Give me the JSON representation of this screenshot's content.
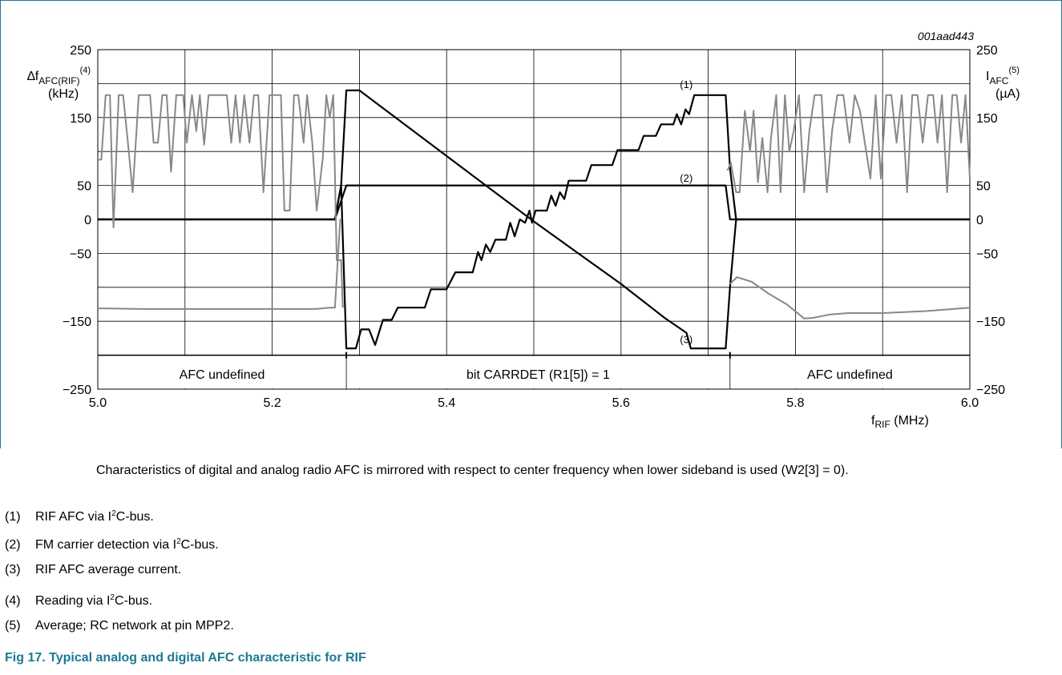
{
  "figure_id": "001aad443",
  "figure_caption": "Fig 17. Typical analog and digital AFC characteristic for RIF",
  "caption_text": "Characteristics of digital and analog radio AFC is mirrored with respect to center frequency when lower sideband is used (W2[3] = 0).",
  "notes": [
    {
      "num": "(1)",
      "pre": "RIF AFC via I",
      "post": "C-bus."
    },
    {
      "num": "(2)",
      "pre": "FM carrier detection via I",
      "post": "C-bus."
    },
    {
      "num": "(3)",
      "pre": "RIF AFC average current.",
      "post": ""
    },
    {
      "num": "(4)",
      "pre": "Reading via I",
      "post": "C-bus."
    },
    {
      "num": "(5)",
      "pre": "Average; RC network at pin MPP2.",
      "post": ""
    }
  ],
  "sup2": "2",
  "colors": {
    "frame": "#1b7a93",
    "black": "#000000",
    "gray": "#888888",
    "grid": "#000000",
    "caption": "#1b7a93"
  },
  "chart_data": {
    "type": "line",
    "xlabel_main": "f",
    "xlabel_sub": "RIF",
    "xlabel_unit": " (MHz)",
    "ylabel_left_main": "∆f",
    "ylabel_left_sub": "AFC(RIF)",
    "ylabel_left_sup": "(4)",
    "ylabel_left_unit": "(kHz)",
    "ylabel_right_main": "I",
    "ylabel_right_sub": "AFC",
    "ylabel_right_sup": "(5)",
    "ylabel_right_unit": "(µA)",
    "xlim": [
      5.0,
      6.0
    ],
    "ylim": [
      -250,
      250
    ],
    "x_ticks": [
      "5.0",
      "5.2",
      "5.4",
      "5.6",
      "5.8",
      "6.0"
    ],
    "y_ticks_left": [
      "250",
      "150",
      "50",
      "0",
      "−50",
      "−150",
      "−250"
    ],
    "y_ticks_right": [
      "250",
      "150",
      "50",
      "0",
      "−50",
      "−150",
      "−250"
    ],
    "grid": true,
    "regions": [
      {
        "label": "AFC undefined",
        "x_from": 5.0,
        "x_to": 5.285
      },
      {
        "label": "bit CARRDET (R1[5]) = 1",
        "x_from": 5.285,
        "x_to": 5.725
      },
      {
        "label": "AFC undefined",
        "x_from": 5.725,
        "x_to": 6.0
      }
    ],
    "series": [
      {
        "name": "(1)",
        "label_at": [
          5.695,
          203
        ],
        "points": [
          [
            5.0,
            0
          ],
          [
            5.272,
            0
          ],
          [
            5.279,
            50
          ],
          [
            5.285,
            -190
          ],
          [
            5.296,
            -190
          ],
          [
            5.302,
            -162
          ],
          [
            5.311,
            -162
          ],
          [
            5.318,
            -185
          ],
          [
            5.327,
            -148
          ],
          [
            5.337,
            -148
          ],
          [
            5.344,
            -130
          ],
          [
            5.375,
            -130
          ],
          [
            5.382,
            -103
          ],
          [
            5.4,
            -103
          ],
          [
            5.41,
            -78
          ],
          [
            5.43,
            -78
          ],
          [
            5.436,
            -48
          ],
          [
            5.44,
            -60
          ],
          [
            5.445,
            -37
          ],
          [
            5.45,
            -48
          ],
          [
            5.456,
            -30
          ],
          [
            5.468,
            -30
          ],
          [
            5.473,
            -5
          ],
          [
            5.478,
            -25
          ],
          [
            5.484,
            0
          ],
          [
            5.49,
            -5
          ],
          [
            5.495,
            13
          ],
          [
            5.498,
            -5
          ],
          [
            5.502,
            13
          ],
          [
            5.515,
            13
          ],
          [
            5.52,
            35
          ],
          [
            5.525,
            20
          ],
          [
            5.53,
            40
          ],
          [
            5.535,
            30
          ],
          [
            5.54,
            57
          ],
          [
            5.56,
            57
          ],
          [
            5.566,
            80
          ],
          [
            5.59,
            80
          ],
          [
            5.596,
            102
          ],
          [
            5.62,
            102
          ],
          [
            5.626,
            123
          ],
          [
            5.64,
            123
          ],
          [
            5.646,
            140
          ],
          [
            5.66,
            140
          ],
          [
            5.664,
            155
          ],
          [
            5.669,
            140
          ],
          [
            5.674,
            162
          ],
          [
            5.678,
            155
          ],
          [
            5.684,
            183
          ],
          [
            5.72,
            183
          ],
          [
            5.725,
            75
          ],
          [
            5.732,
            0
          ],
          [
            6.0,
            0
          ]
        ]
      },
      {
        "name": "(2)",
        "label_at": [
          5.695,
          65
        ],
        "points": [
          [
            5.0,
            0
          ],
          [
            5.272,
            0
          ],
          [
            5.285,
            50
          ],
          [
            5.72,
            50
          ],
          [
            5.725,
            0
          ],
          [
            6.0,
            0
          ]
        ]
      },
      {
        "name": "(3)",
        "label_at": [
          5.695,
          -173
        ],
        "points": [
          [
            5.0,
            0
          ],
          [
            5.272,
            0
          ],
          [
            5.279,
            50
          ],
          [
            5.285,
            190
          ],
          [
            5.3,
            190
          ],
          [
            5.45,
            45
          ],
          [
            5.5,
            -3
          ],
          [
            5.55,
            -49
          ],
          [
            5.6,
            -95
          ],
          [
            5.65,
            -145
          ],
          [
            5.675,
            -167
          ],
          [
            5.68,
            -190
          ],
          [
            5.72,
            -190
          ],
          [
            5.725,
            -100
          ],
          [
            5.732,
            0
          ],
          [
            6.0,
            0
          ]
        ]
      },
      {
        "name": "",
        "color": "gray",
        "points": [
          [
            5.0,
            88
          ],
          [
            5.004,
            88
          ],
          [
            5.009,
            183
          ],
          [
            5.014,
            183
          ],
          [
            5.018,
            -12
          ],
          [
            5.024,
            183
          ],
          [
            5.029,
            183
          ],
          [
            5.034,
            120
          ],
          [
            5.04,
            40
          ],
          [
            5.047,
            183
          ],
          [
            5.06,
            183
          ],
          [
            5.064,
            113
          ],
          [
            5.069,
            113
          ],
          [
            5.074,
            183
          ],
          [
            5.079,
            183
          ],
          [
            5.084,
            70
          ],
          [
            5.09,
            183
          ],
          [
            5.098,
            183
          ],
          [
            5.102,
            113
          ],
          [
            5.108,
            183
          ],
          [
            5.113,
            130
          ],
          [
            5.117,
            183
          ],
          [
            5.122,
            110
          ],
          [
            5.127,
            183
          ],
          [
            5.134,
            183
          ],
          [
            5.14,
            183
          ],
          [
            5.148,
            183
          ],
          [
            5.153,
            113
          ],
          [
            5.158,
            183
          ],
          [
            5.163,
            113
          ],
          [
            5.168,
            183
          ],
          [
            5.174,
            113
          ],
          [
            5.179,
            183
          ],
          [
            5.184,
            183
          ],
          [
            5.19,
            40
          ],
          [
            5.197,
            183
          ],
          [
            5.205,
            183
          ],
          [
            5.21,
            183
          ],
          [
            5.214,
            13
          ],
          [
            5.22,
            13
          ],
          [
            5.225,
            183
          ],
          [
            5.23,
            183
          ],
          [
            5.236,
            113
          ],
          [
            5.24,
            183
          ],
          [
            5.246,
            113
          ],
          [
            5.251,
            13
          ],
          [
            5.258,
            90
          ],
          [
            5.262,
            183
          ],
          [
            5.266,
            150
          ],
          [
            5.27,
            183
          ],
          [
            5.274,
            -60
          ],
          [
            5.279,
            -60
          ],
          [
            5.281,
            -130
          ]
        ]
      },
      {
        "name": "",
        "color": "gray",
        "points": [
          [
            5.0,
            -131
          ],
          [
            5.05,
            -132
          ],
          [
            5.1,
            -132
          ],
          [
            5.15,
            -132
          ],
          [
            5.2,
            -132
          ],
          [
            5.25,
            -132
          ],
          [
            5.266,
            -130
          ],
          [
            5.272,
            -130
          ],
          [
            5.278,
            0
          ],
          [
            5.28,
            0
          ]
        ]
      },
      {
        "name": "",
        "color": "gray",
        "points": [
          [
            5.722,
            72
          ],
          [
            5.726,
            83
          ],
          [
            5.732,
            40
          ],
          [
            5.736,
            40
          ],
          [
            5.742,
            160
          ],
          [
            5.748,
            100
          ],
          [
            5.752,
            160
          ],
          [
            5.757,
            55
          ],
          [
            5.762,
            120
          ],
          [
            5.768,
            40
          ],
          [
            5.772,
            120
          ],
          [
            5.778,
            183
          ],
          [
            5.783,
            40
          ],
          [
            5.788,
            183
          ],
          [
            5.793,
            100
          ],
          [
            5.798,
            130
          ],
          [
            5.804,
            183
          ],
          [
            5.81,
            40
          ],
          [
            5.816,
            130
          ],
          [
            5.822,
            183
          ],
          [
            5.83,
            183
          ],
          [
            5.836,
            40
          ],
          [
            5.842,
            130
          ],
          [
            5.848,
            183
          ],
          [
            5.855,
            183
          ],
          [
            5.862,
            113
          ],
          [
            5.868,
            183
          ],
          [
            5.874,
            160
          ],
          [
            5.88,
            110
          ],
          [
            5.886,
            60
          ],
          [
            5.892,
            183
          ],
          [
            5.898,
            60
          ],
          [
            5.904,
            183
          ],
          [
            5.91,
            183
          ],
          [
            5.916,
            113
          ],
          [
            5.922,
            183
          ],
          [
            5.928,
            40
          ],
          [
            5.934,
            183
          ],
          [
            5.94,
            183
          ],
          [
            5.946,
            113
          ],
          [
            5.952,
            183
          ],
          [
            5.958,
            183
          ],
          [
            5.963,
            113
          ],
          [
            5.968,
            183
          ],
          [
            5.974,
            40
          ],
          [
            5.98,
            183
          ],
          [
            5.985,
            183
          ],
          [
            5.99,
            113
          ],
          [
            5.995,
            183
          ],
          [
            6.0,
            60
          ]
        ]
      },
      {
        "name": "",
        "color": "gray",
        "points": [
          [
            5.725,
            -95
          ],
          [
            5.733,
            -85
          ],
          [
            5.75,
            -92
          ],
          [
            5.77,
            -110
          ],
          [
            5.79,
            -125
          ],
          [
            5.81,
            -146
          ],
          [
            5.82,
            -145
          ],
          [
            5.84,
            -140
          ],
          [
            5.86,
            -138
          ],
          [
            5.9,
            -138
          ],
          [
            5.95,
            -135
          ],
          [
            6.0,
            -130
          ]
        ]
      }
    ]
  }
}
